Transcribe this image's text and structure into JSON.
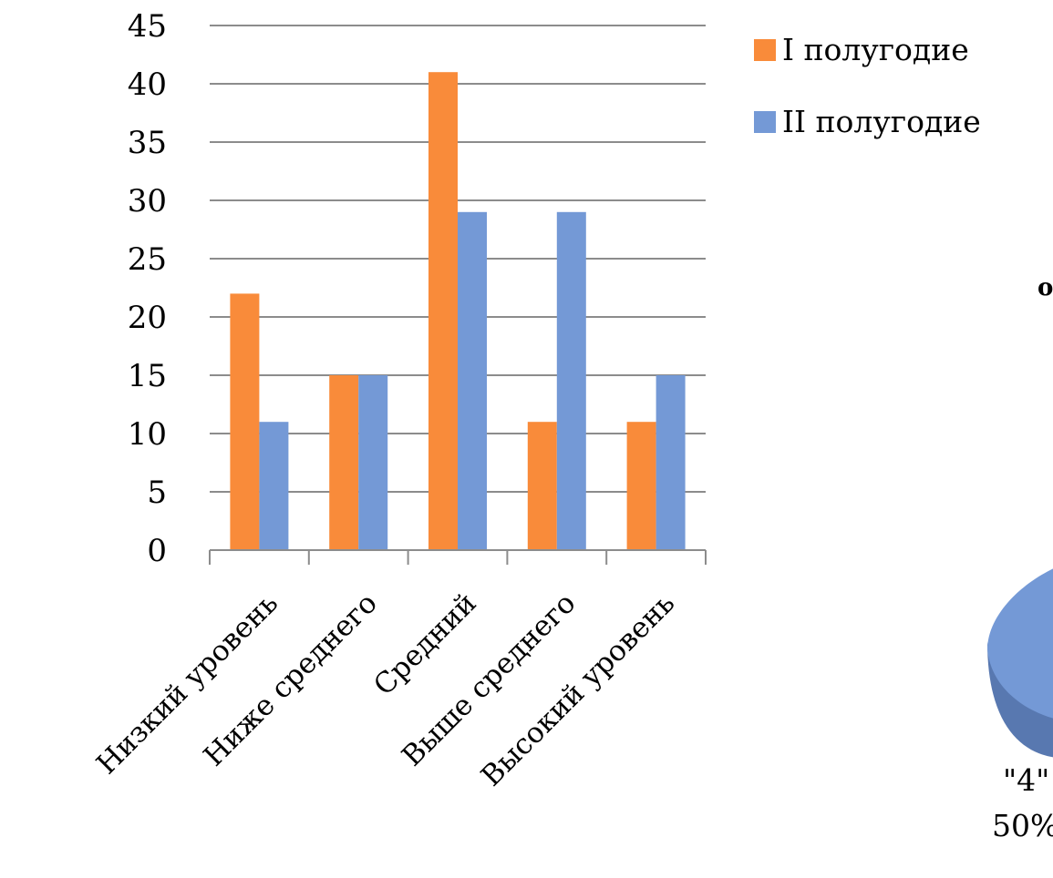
{
  "chart_data": [
    {
      "type": "bar",
      "categories": [
        "Низкий уровень",
        "Ниже среднего",
        "Средний",
        "Выше среднего",
        "Высокий уровень"
      ],
      "series": [
        {
          "name": "I полугодие",
          "values": [
            22,
            15,
            41,
            11,
            11
          ],
          "color": "#f98b3a"
        },
        {
          "name": "II полугодие",
          "values": [
            11,
            15,
            29,
            29,
            15
          ],
          "color": "#7499d6"
        }
      ],
      "ylim": [
        0,
        45
      ],
      "yticks": [
        0,
        5,
        10,
        15,
        20,
        25,
        30,
        35,
        40,
        45
      ],
      "grid": true,
      "legend_position": "right"
    },
    {
      "type": "pie",
      "partially_visible": true,
      "visible_text": [
        "о",
        "\"4\"",
        "50%"
      ],
      "slice_color": "#7499d6"
    }
  ]
}
